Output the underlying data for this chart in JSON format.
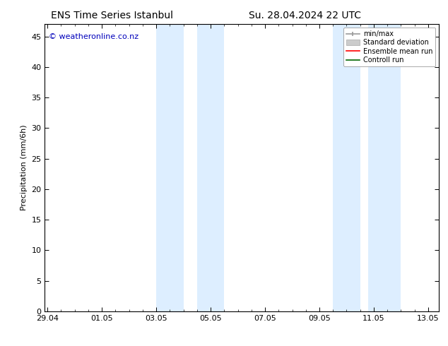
{
  "title_left": "ENS Time Series Istanbul",
  "title_right": "Su. 28.04.2024 22 UTC",
  "ylabel": "Precipitation (mm/6h)",
  "watermark": "© weatheronline.co.nz",
  "watermark_color": "#0000bb",
  "background_color": "#ffffff",
  "plot_bg_color": "#ffffff",
  "shaded_band_color": "#ddeeff",
  "ylim": [
    0,
    47
  ],
  "yticks": [
    0,
    5,
    10,
    15,
    20,
    25,
    30,
    35,
    40,
    45
  ],
  "x_tick_labels": [
    "29.04",
    "01.05",
    "03.05",
    "05.05",
    "07.05",
    "09.05",
    "11.05",
    "13.05"
  ],
  "x_tick_positions": [
    0,
    2,
    4,
    6,
    8,
    10,
    12,
    14
  ],
  "xlim": [
    -0.1,
    14.4
  ],
  "shaded_regions": [
    [
      4.0,
      5.0
    ],
    [
      5.5,
      6.5
    ],
    [
      10.5,
      11.5
    ],
    [
      11.8,
      13.0
    ]
  ],
  "legend_entries": [
    {
      "label": "min/max",
      "color": "#999999",
      "linestyle": "-",
      "linewidth": 1.2
    },
    {
      "label": "Standard deviation",
      "color": "#cccccc",
      "linestyle": "-",
      "linewidth": 5
    },
    {
      "label": "Ensemble mean run",
      "color": "#ff0000",
      "linestyle": "-",
      "linewidth": 1.2
    },
    {
      "label": "Controll run",
      "color": "#006600",
      "linestyle": "-",
      "linewidth": 1.2
    }
  ],
  "title_fontsize": 10,
  "tick_fontsize": 8,
  "ylabel_fontsize": 8,
  "watermark_fontsize": 8,
  "legend_fontsize": 7
}
